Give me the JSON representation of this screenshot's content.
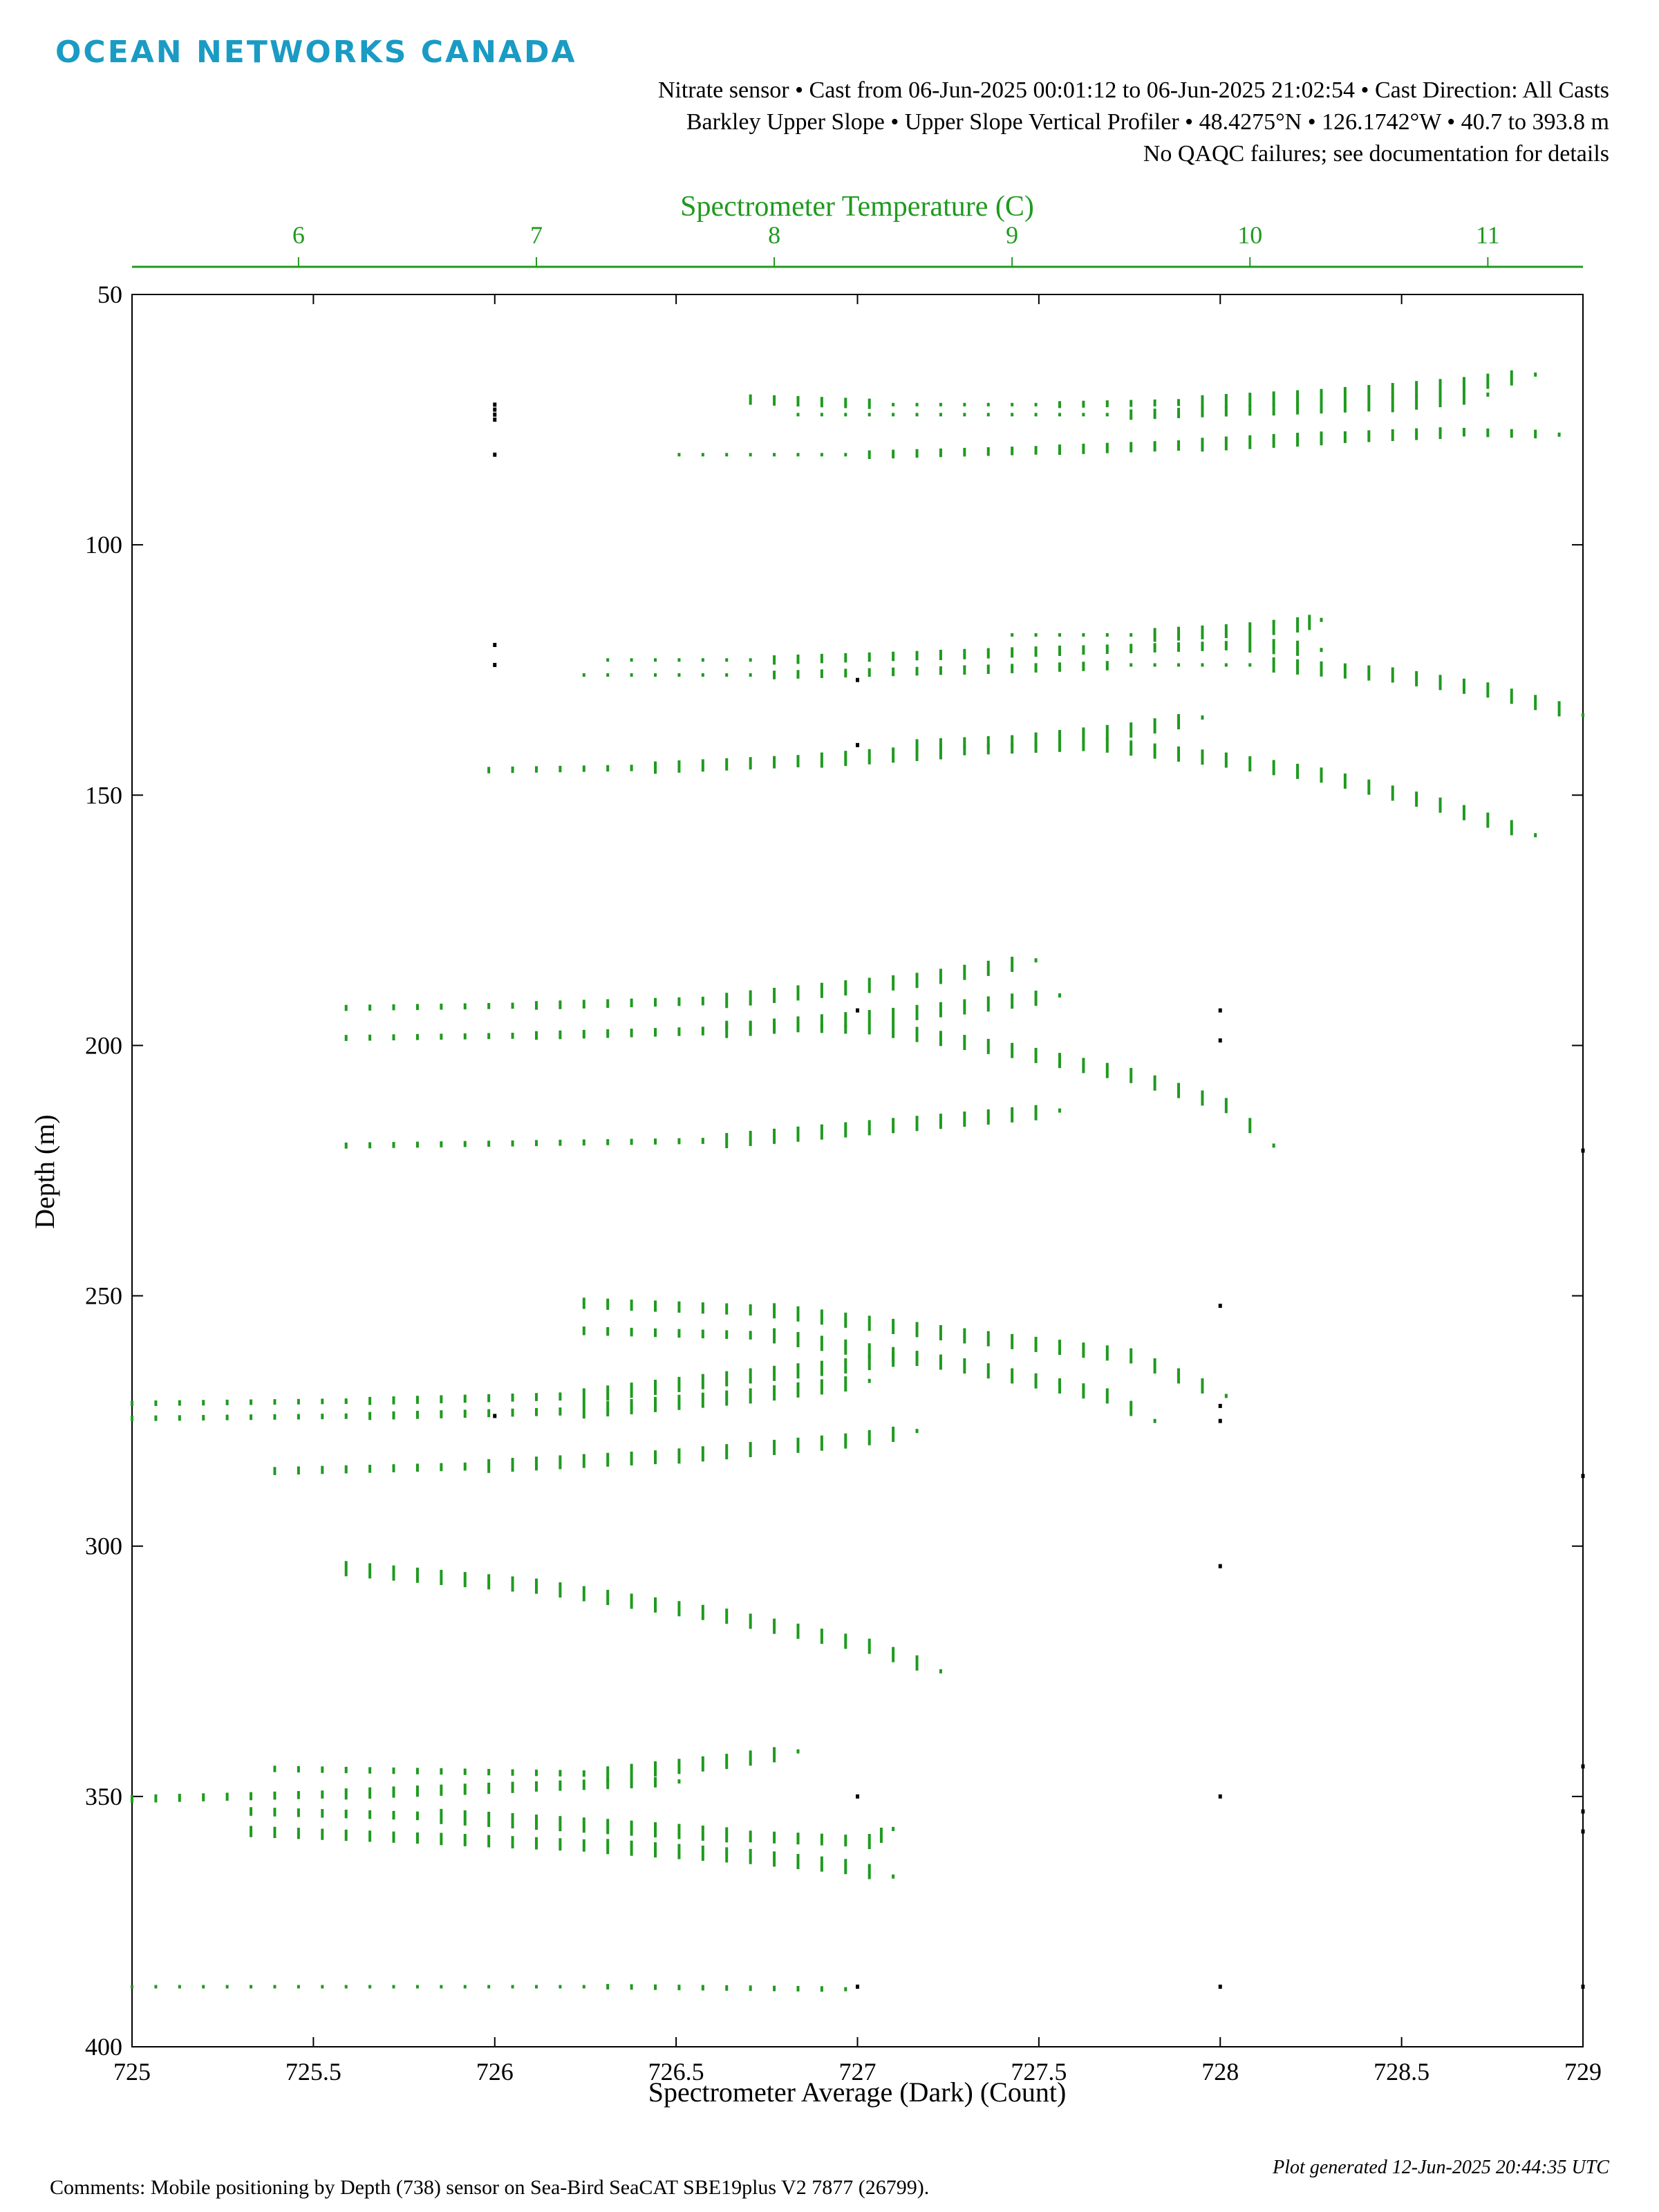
{
  "header": {
    "logo_text": "OCEAN NETWORKS CANADA",
    "line1": "Nitrate sensor • Cast from 06-Jun-2025 00:01:12 to 06-Jun-2025 21:02:54 • Cast Direction: All Casts",
    "line2": "Barkley Upper Slope • Upper Slope Vertical Profiler • 48.4275°N • 126.1742°W • 40.7 to 393.8 m",
    "line3": "No QAQC failures; see documentation for details"
  },
  "footer": {
    "comments": "Comments: Mobile positioning by Depth (738) sensor on Sea-Bird SeaCAT SBE19plus V2 7877 (26799).",
    "generated": "Plot generated 12-Jun-2025 20:44:35 UTC"
  },
  "colors": {
    "logo": "#1a9bc4",
    "temperature": "#1f9a1f",
    "dark_count": "#000000"
  },
  "chart_data": {
    "type": "scatter",
    "xlabel": "Spectrometer Average (Dark) (Count)",
    "x2label": "Spectrometer Temperature (C)",
    "ylabel": "Depth (m)",
    "xlim": [
      725,
      729
    ],
    "x2lim": [
      5.3,
      11.4
    ],
    "ylim": [
      400,
      50
    ],
    "y_inverted": true,
    "grid": false,
    "xticks": [
      "725",
      "725.5",
      "726",
      "726.5",
      "727",
      "727.5",
      "728",
      "728.5",
      "729"
    ],
    "x2ticks": [
      "6",
      "7",
      "8",
      "9",
      "10",
      "11"
    ],
    "yticks": [
      "50",
      "100",
      "150",
      "200",
      "250",
      "300",
      "350",
      "400"
    ],
    "series": [
      {
        "axis": "top",
        "color": "#1f9a1f",
        "segments": [
          [
            [
              7.9,
              71
            ],
            [
              8.5,
              72
            ],
            [
              9.2,
              72
            ],
            [
              9.8,
              71.5
            ],
            [
              10.4,
              70
            ],
            [
              10.9,
              68
            ],
            [
              11.2,
              66
            ]
          ],
          [
            [
              8.1,
              74
            ],
            [
              8.8,
              74
            ],
            [
              9.5,
              74
            ],
            [
              10.1,
              73
            ],
            [
              10.6,
              72
            ],
            [
              11.0,
              70
            ]
          ],
          [
            [
              7.6,
              82
            ],
            [
              8.4,
              82
            ],
            [
              9.2,
              81
            ],
            [
              9.8,
              80
            ],
            [
              10.4,
              78.5
            ],
            [
              10.9,
              77.5
            ],
            [
              11.3,
              78
            ]
          ],
          [
            [
              9.0,
              118
            ],
            [
              9.6,
              118
            ],
            [
              10.0,
              117
            ],
            [
              10.2,
              116
            ],
            [
              10.3,
              115
            ]
          ],
          [
            [
              7.3,
              123
            ],
            [
              8.0,
              123
            ],
            [
              8.7,
              122
            ],
            [
              9.3,
              121
            ],
            [
              10.0,
              120
            ],
            [
              10.3,
              121
            ]
          ],
          [
            [
              7.2,
              126
            ],
            [
              8.0,
              126
            ],
            [
              8.8,
              125
            ],
            [
              9.5,
              124
            ],
            [
              10.1,
              124
            ],
            [
              10.6,
              126
            ],
            [
              11.0,
              129
            ],
            [
              11.4,
              134
            ]
          ],
          [
            [
              8.6,
              140
            ],
            [
              9.1,
              139
            ],
            [
              9.5,
              137
            ],
            [
              9.8,
              134.5
            ]
          ],
          [
            [
              6.8,
              145
            ],
            [
              7.5,
              144.5
            ],
            [
              8.2,
              143
            ],
            [
              8.8,
              141
            ],
            [
              9.4,
              140
            ],
            [
              9.9,
              143
            ],
            [
              10.3,
              146
            ],
            [
              10.8,
              152
            ],
            [
              11.2,
              158
            ]
          ],
          [
            [
              6.2,
              192.5
            ],
            [
              7.0,
              192
            ],
            [
              7.8,
              191
            ],
            [
              8.6,
              187
            ],
            [
              9.1,
              183
            ]
          ],
          [
            [
              6.2,
              198.5
            ],
            [
              7.0,
              198
            ],
            [
              7.8,
              197
            ],
            [
              8.5,
              194
            ],
            [
              9.2,
              190
            ]
          ],
          [
            [
              7.8,
              196
            ],
            [
              8.5,
              197
            ],
            [
              9.0,
              201
            ],
            [
              9.5,
              206
            ],
            [
              9.9,
              212
            ],
            [
              10.1,
              220
            ]
          ],
          [
            [
              6.2,
              220
            ],
            [
              7.0,
              219.5
            ],
            [
              7.8,
              219
            ],
            [
              8.5,
              216
            ],
            [
              9.2,
              213
            ]
          ],
          [
            [
              7.2,
              251.5
            ],
            [
              8.0,
              253
            ],
            [
              8.8,
              258
            ],
            [
              9.5,
              262
            ],
            [
              9.9,
              270
            ]
          ],
          [
            [
              7.2,
              257
            ],
            [
              8.0,
              258
            ],
            [
              8.8,
              264
            ],
            [
              9.4,
              270
            ],
            [
              9.6,
              275
            ]
          ],
          [
            [
              5.3,
              271.5
            ],
            [
              6.3,
              271
            ],
            [
              7.2,
              270
            ],
            [
              7.9,
              266
            ],
            [
              8.3,
              264
            ],
            [
              8.6,
              262
            ]
          ],
          [
            [
              5.3,
              274.5
            ],
            [
              6.3,
              274
            ],
            [
              7.2,
              273
            ],
            [
              7.9,
              270
            ],
            [
              8.4,
              267
            ]
          ],
          [
            [
              5.9,
              285
            ],
            [
              6.8,
              284
            ],
            [
              7.6,
              282
            ],
            [
              8.3,
              279
            ],
            [
              8.6,
              277
            ]
          ],
          [
            [
              6.2,
              304.5
            ],
            [
              7.0,
              308
            ],
            [
              7.8,
              314
            ],
            [
              8.4,
              320
            ],
            [
              8.7,
              325
            ]
          ],
          [
            [
              5.9,
              344.5
            ],
            [
              6.6,
              345
            ],
            [
              7.3,
              345.5
            ],
            [
              7.8,
              343
            ],
            [
              8.1,
              341
            ]
          ],
          [
            [
              5.3,
              350.5
            ],
            [
              6.2,
              349.5
            ],
            [
              7.0,
              348
            ],
            [
              7.6,
              347
            ]
          ],
          [
            [
              5.8,
              353
            ],
            [
              6.6,
              354
            ],
            [
              7.3,
              356
            ],
            [
              7.9,
              358
            ],
            [
              8.4,
              359
            ],
            [
              8.5,
              356.5
            ]
          ],
          [
            [
              5.8,
              357
            ],
            [
              6.6,
              358.5
            ],
            [
              7.3,
              360
            ],
            [
              7.9,
              362
            ],
            [
              8.3,
              364
            ],
            [
              8.5,
              366
            ]
          ],
          [
            [
              5.3,
              388
            ],
            [
              6.3,
              388
            ],
            [
              7.3,
              388
            ],
            [
              8.3,
              388.5
            ]
          ]
        ]
      },
      {
        "axis": "bottom",
        "color": "#000000",
        "points": [
          [
            726,
            72
          ],
          [
            726,
            73
          ],
          [
            726,
            74
          ],
          [
            726,
            75
          ],
          [
            726,
            82
          ],
          [
            726,
            120
          ],
          [
            726,
            124
          ],
          [
            726,
            274
          ],
          [
            727,
            127
          ],
          [
            727,
            140
          ],
          [
            727,
            193
          ],
          [
            727,
            350
          ],
          [
            727,
            388
          ],
          [
            728,
            193
          ],
          [
            728,
            199
          ],
          [
            728,
            252
          ],
          [
            728,
            272
          ],
          [
            728,
            275
          ],
          [
            728,
            304
          ],
          [
            728,
            350
          ],
          [
            728,
            388
          ],
          [
            729,
            221
          ],
          [
            729,
            286
          ],
          [
            729,
            344
          ],
          [
            729,
            353
          ],
          [
            729,
            357
          ],
          [
            729,
            388
          ]
        ]
      }
    ]
  }
}
